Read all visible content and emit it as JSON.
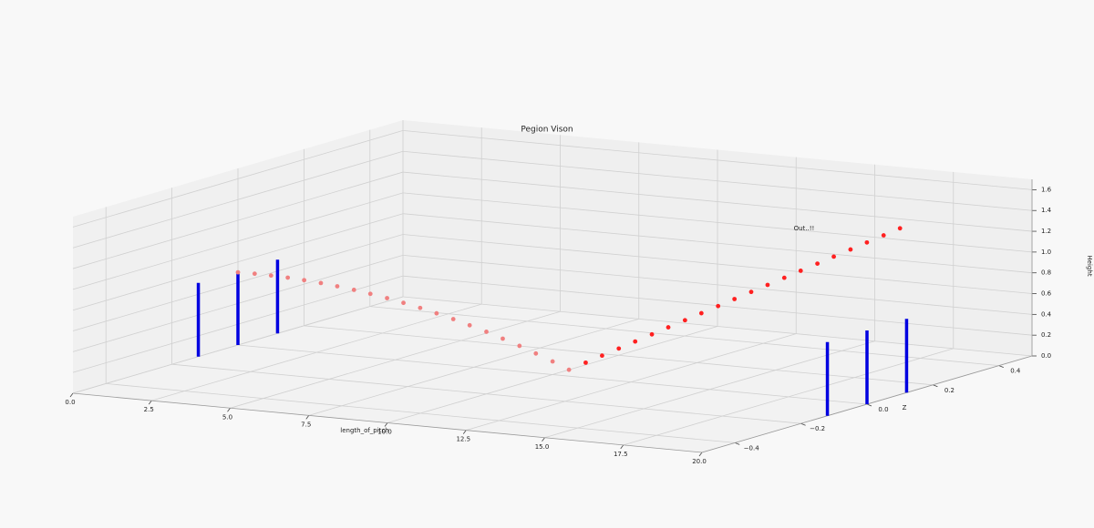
{
  "chart_data": {
    "type": "scatter3d",
    "title": "Pegion Vison",
    "xlabel": "length_of_pitch",
    "ylabel": "Z",
    "zlabel": "Height",
    "annotation": "Out..!!",
    "xlim": [
      0,
      20
    ],
    "ylim": [
      -0.5,
      0.5
    ],
    "zlim": [
      0,
      1.7
    ],
    "xticks": [
      {
        "value": 0,
        "label": "0.0"
      },
      {
        "value": 2.5,
        "label": "2.5"
      },
      {
        "value": 5,
        "label": "5.0"
      },
      {
        "value": 7.5,
        "label": "7.5"
      },
      {
        "value": 10,
        "label": "10.0"
      },
      {
        "value": 12.5,
        "label": "12.5"
      },
      {
        "value": 15,
        "label": "15.0"
      },
      {
        "value": 17.5,
        "label": "17.5"
      },
      {
        "value": 20,
        "label": "20.0"
      }
    ],
    "yticks": [
      {
        "value": -0.4,
        "label": "−0.4"
      },
      {
        "value": -0.2,
        "label": "−0.2"
      },
      {
        "value": 0,
        "label": "0.0"
      },
      {
        "value": 0.2,
        "label": "0.2"
      },
      {
        "value": 0.4,
        "label": "0.4"
      }
    ],
    "zticks": [
      {
        "value": 0,
        "label": "0.0"
      },
      {
        "value": 0.2,
        "label": "0.2"
      },
      {
        "value": 0.4,
        "label": "0.4"
      },
      {
        "value": 0.6,
        "label": "0.6"
      },
      {
        "value": 0.8,
        "label": "0.8"
      },
      {
        "value": 1.0,
        "label": "1.0"
      },
      {
        "value": 1.2,
        "label": "1.2"
      },
      {
        "value": 1.4,
        "label": "1.4"
      },
      {
        "value": 1.6,
        "label": "1.6"
      }
    ],
    "grid": true,
    "stumps": {
      "color": "#0000e0",
      "items": [
        {
          "x": 0,
          "y": -0.12,
          "height": 0.71
        },
        {
          "x": 0,
          "y": 0,
          "height": 0.71
        },
        {
          "x": 0,
          "y": 0.12,
          "height": 0.71
        },
        {
          "x": 20,
          "y": -0.12,
          "height": 0.71
        },
        {
          "x": 20,
          "y": 0,
          "height": 0.71
        },
        {
          "x": 20,
          "y": 0.12,
          "height": 0.71
        }
      ]
    },
    "series": [
      {
        "color": "#f08080",
        "x": [
          0,
          0.5,
          1,
          1.5,
          2,
          2.5,
          3,
          3.5,
          4,
          4.5,
          5,
          5.5,
          6,
          6.5,
          7,
          7.5,
          8,
          8.5,
          9,
          9.5,
          10
        ],
        "y": [
          0,
          0.003,
          0.005,
          0.008,
          0.01,
          0.013,
          0.015,
          0.018,
          0.02,
          0.023,
          0.025,
          0.028,
          0.03,
          0.033,
          0.035,
          0.038,
          0.04,
          0.043,
          0.045,
          0.048,
          0.05
        ],
        "z": [
          0.7,
          0.698,
          0.693,
          0.684,
          0.672,
          0.656,
          0.637,
          0.614,
          0.588,
          0.558,
          0.525,
          0.488,
          0.448,
          0.404,
          0.357,
          0.306,
          0.252,
          0.194,
          0.133,
          0.068,
          0
        ]
      },
      {
        "color": "#ff2020",
        "x": [
          10.5,
          11,
          11.5,
          12,
          12.5,
          13,
          13.5,
          14,
          14.5,
          15,
          15.5,
          16,
          16.5,
          17,
          17.5,
          18,
          18.5,
          19,
          19.5,
          20
        ],
        "y": [
          0.053,
          0.055,
          0.058,
          0.06,
          0.063,
          0.065,
          0.068,
          0.07,
          0.073,
          0.075,
          0.078,
          0.08,
          0.083,
          0.085,
          0.088,
          0.09,
          0.093,
          0.095,
          0.098,
          0.1
        ],
        "z": [
          0.08,
          0.16,
          0.24,
          0.32,
          0.4,
          0.48,
          0.56,
          0.64,
          0.72,
          0.8,
          0.88,
          0.96,
          1.04,
          1.12,
          1.2,
          1.28,
          1.36,
          1.44,
          1.52,
          1.6
        ]
      }
    ]
  }
}
